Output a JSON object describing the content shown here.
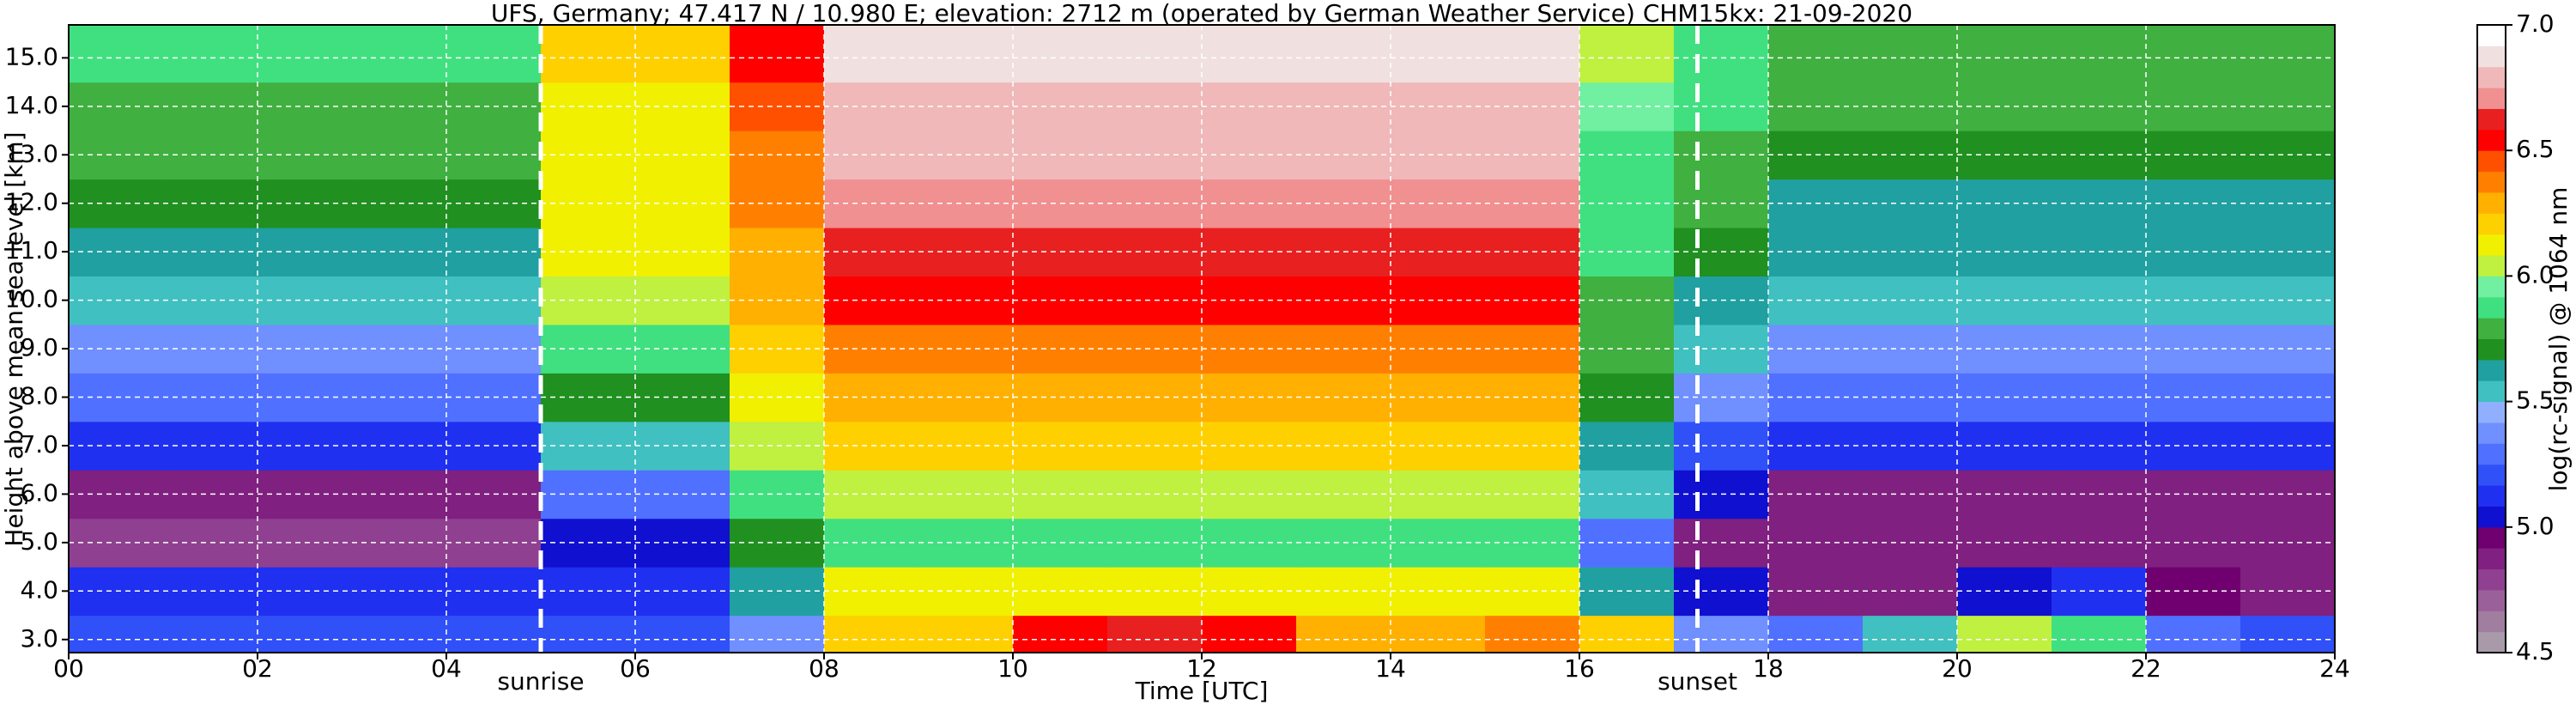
{
  "chart_data": {
    "type": "heatmap",
    "title": "UFS, Germany; 47.417 N / 10.980 E; elevation: 2712 m  (operated by German Weather Service)    CHM15kx: 21-09-2020",
    "x_label": "Time [UTC]",
    "y_label": "Height above mean sea level [km]",
    "colorbar_label": "log(rc-signal) @ 1064 nm",
    "xlim": [
      0,
      24
    ],
    "ylim": [
      2.73,
      15.68
    ],
    "xticks": [
      {
        "value": 0,
        "label": "00"
      },
      {
        "value": 2,
        "label": "02"
      },
      {
        "value": 4,
        "label": "04"
      },
      {
        "value": 6,
        "label": "06"
      },
      {
        "value": 8,
        "label": "08"
      },
      10,
      12,
      14,
      16,
      18,
      20,
      22,
      24
    ],
    "yticks": [
      {
        "value": 3,
        "label": "3.0"
      },
      {
        "value": 4,
        "label": "4.0"
      },
      {
        "value": 5,
        "label": "5.0"
      },
      {
        "value": 6,
        "label": "6.0"
      },
      {
        "value": 7,
        "label": "7.0"
      },
      {
        "value": 8,
        "label": "8.0"
      },
      {
        "value": 9,
        "label": "9.0"
      },
      {
        "value": 10,
        "label": "10.0"
      },
      {
        "value": 11,
        "label": "11.0"
      },
      {
        "value": 12,
        "label": "12.0"
      },
      {
        "value": 13,
        "label": "13.0"
      },
      {
        "value": 14,
        "label": "14.0"
      },
      {
        "value": 15,
        "label": "15.0"
      }
    ],
    "grid": true,
    "grid_color": "#ffffff",
    "xbins": [
      0,
      1,
      2,
      3,
      4,
      5,
      6,
      7,
      8,
      9,
      10,
      11,
      12,
      13,
      14,
      15,
      16,
      17,
      18,
      19,
      20,
      21,
      22,
      23,
      24
    ],
    "ybins": [
      2.73,
      3.5,
      4.5,
      5.5,
      6.5,
      7.5,
      8.5,
      9.5,
      10.5,
      11.5,
      12.5,
      13.5,
      14.5,
      15.68
    ],
    "z": [
      [
        5.2,
        5.2,
        5.2,
        5.2,
        5.2,
        5.2,
        5.2,
        5.4,
        6.2,
        6.2,
        6.5,
        6.6,
        6.5,
        6.3,
        6.3,
        6.4,
        6.2,
        5.4,
        5.3,
        5.5,
        6.0,
        5.9,
        5.3,
        5.2
      ],
      [
        5.1,
        5.1,
        5.1,
        5.1,
        5.1,
        5.1,
        5.1,
        5.6,
        6.1,
        6.1,
        6.1,
        6.1,
        6.1,
        6.1,
        6.1,
        6.1,
        5.6,
        5.0,
        4.9,
        4.9,
        5.0,
        5.1,
        4.95,
        4.9
      ],
      [
        4.8,
        4.8,
        4.8,
        4.8,
        4.8,
        5.0,
        5.0,
        5.7,
        5.9,
        5.9,
        5.9,
        5.9,
        5.9,
        5.9,
        5.9,
        5.9,
        5.3,
        4.9,
        4.85,
        4.85,
        4.85,
        4.85,
        4.85,
        4.85
      ],
      [
        4.9,
        4.9,
        4.9,
        4.9,
        4.9,
        5.3,
        5.3,
        5.9,
        6.0,
        6.0,
        6.0,
        6.0,
        6.0,
        6.0,
        6.0,
        6.0,
        5.5,
        5.0,
        4.9,
        4.9,
        4.9,
        4.9,
        4.9,
        4.9
      ],
      [
        5.1,
        5.1,
        5.1,
        5.1,
        5.1,
        5.5,
        5.5,
        6.0,
        6.2,
        6.2,
        6.2,
        6.2,
        6.2,
        6.2,
        6.2,
        6.2,
        5.6,
        5.2,
        5.1,
        5.1,
        5.1,
        5.1,
        5.1,
        5.1
      ],
      [
        5.3,
        5.3,
        5.3,
        5.3,
        5.3,
        5.7,
        5.7,
        6.1,
        6.3,
        6.3,
        6.3,
        6.3,
        6.3,
        6.3,
        6.3,
        6.3,
        5.7,
        5.4,
        5.3,
        5.3,
        5.3,
        5.3,
        5.3,
        5.3
      ],
      [
        5.4,
        5.4,
        5.4,
        5.4,
        5.4,
        5.9,
        5.9,
        6.2,
        6.4,
        6.4,
        6.4,
        6.4,
        6.4,
        6.4,
        6.4,
        6.4,
        5.75,
        5.5,
        5.4,
        5.4,
        5.4,
        5.4,
        5.4,
        5.4
      ],
      [
        5.5,
        5.5,
        5.5,
        5.5,
        5.5,
        6.0,
        6.0,
        6.25,
        6.5,
        6.5,
        6.5,
        6.5,
        6.5,
        6.5,
        6.5,
        6.5,
        5.8,
        5.6,
        5.5,
        5.5,
        5.5,
        5.5,
        5.5,
        5.5
      ],
      [
        5.6,
        5.6,
        5.6,
        5.6,
        5.6,
        6.1,
        6.1,
        6.3,
        6.6,
        6.6,
        6.6,
        6.6,
        6.6,
        6.6,
        6.6,
        6.6,
        5.85,
        5.7,
        5.6,
        5.6,
        5.6,
        5.6,
        5.6,
        5.6
      ],
      [
        5.7,
        5.7,
        5.7,
        5.7,
        5.7,
        6.1,
        6.1,
        6.35,
        6.7,
        6.7,
        6.7,
        6.7,
        6.7,
        6.7,
        6.7,
        6.7,
        5.9,
        5.75,
        5.65,
        5.65,
        5.65,
        5.65,
        5.65,
        5.65
      ],
      [
        5.75,
        5.75,
        5.75,
        5.75,
        5.75,
        6.1,
        6.1,
        6.4,
        6.75,
        6.75,
        6.75,
        6.75,
        6.75,
        6.75,
        6.75,
        6.75,
        5.9,
        5.8,
        5.7,
        5.7,
        5.7,
        5.7,
        5.7,
        5.7
      ],
      [
        5.8,
        5.8,
        5.8,
        5.8,
        5.8,
        6.15,
        6.15,
        6.45,
        6.8,
        6.8,
        6.8,
        6.8,
        6.8,
        6.8,
        6.8,
        6.8,
        5.95,
        5.85,
        5.75,
        5.75,
        5.75,
        5.75,
        5.75,
        5.75
      ],
      [
        5.85,
        5.85,
        5.85,
        5.85,
        5.85,
        6.2,
        6.2,
        6.5,
        6.85,
        6.85,
        6.85,
        6.85,
        6.85,
        6.85,
        6.85,
        6.85,
        6.0,
        5.9,
        5.8,
        5.8,
        5.8,
        5.8,
        5.8,
        5.8
      ]
    ],
    "clim": [
      4.5,
      7.0
    ],
    "cticks": [
      4.5,
      {
        "value": 5,
        "label": "5.0"
      },
      5.5,
      {
        "value": 6,
        "label": "6.0"
      },
      6.5,
      {
        "value": 7,
        "label": "7.0"
      }
    ],
    "colorscale": [
      "#a99aa9",
      "#a07ea0",
      "#9a609a",
      "#904090",
      "#802080",
      "#700070",
      "#1010d0",
      "#2030f0",
      "#3050f8",
      "#5070ff",
      "#7090ff",
      "#90b0ff",
      "#40c0c0",
      "#20a0a0",
      "#209020",
      "#40b040",
      "#40e080",
      "#70f0a0",
      "#c0f040",
      "#f0f000",
      "#ffd000",
      "#ffb000",
      "#ff8000",
      "#ff5000",
      "#ff0000",
      "#e82020",
      "#f09090",
      "#f0b8b8",
      "#f0e0e0",
      "#ffffff"
    ],
    "annotations": [
      {
        "text": "sunrise",
        "x": 5.0
      },
      {
        "text": "sunset",
        "x": 17.25
      }
    ]
  }
}
